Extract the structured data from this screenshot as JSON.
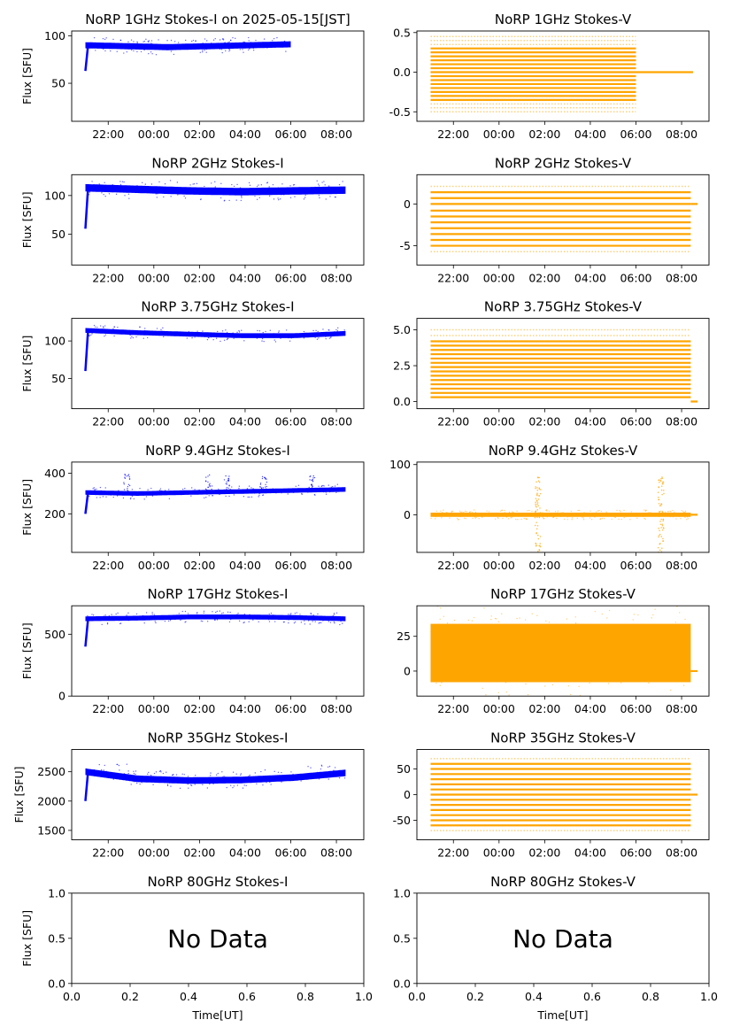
{
  "chart_data": [
    {
      "type": "scatter",
      "title": "NoRP 1GHz Stokes-I on 2025-05-15[JST]",
      "ylabel": "Flux [SFU]",
      "xlabel": "",
      "color": "#0000ff",
      "ylim": [
        10,
        105
      ],
      "yticks": [
        "50",
        "100"
      ],
      "yticks_v": [
        50,
        100
      ],
      "xlim": [
        20.4,
        33.2
      ],
      "xticks": [
        "22:00",
        "00:00",
        "02:00",
        "04:00",
        "06:00",
        "08:00"
      ],
      "xticks_v": [
        22,
        24,
        26,
        28,
        30,
        32
      ],
      "start": 21.0,
      "end": 30.0,
      "base": [
        90,
        89,
        88,
        89,
        90,
        91
      ],
      "rise_from": 63,
      "noise": 2,
      "spikes": 0
    },
    {
      "type": "scatter",
      "title": "NoRP 1GHz Stokes-V",
      "ylabel": "",
      "xlabel": "",
      "color": "#ffa500",
      "ylim": [
        -0.62,
        0.52
      ],
      "yticks": [
        "-0.5",
        "0.0",
        "0.5"
      ],
      "yticks_v": [
        -0.5,
        0,
        0.5
      ],
      "xlim": [
        20.4,
        33.2
      ],
      "xticks": [
        "22:00",
        "00:00",
        "02:00",
        "04:00",
        "06:00",
        "08:00"
      ],
      "xticks_v": [
        22,
        24,
        26,
        28,
        30,
        32
      ],
      "start": 21.0,
      "end": 30.0,
      "levels": [
        -0.35,
        -0.3,
        -0.25,
        -0.2,
        -0.15,
        -0.1,
        -0.05,
        0.0,
        0.05,
        0.1,
        0.15,
        0.2,
        0.25,
        0.3
      ],
      "sparse": [
        -0.5,
        -0.45,
        -0.4,
        0.35,
        0.4,
        0.45
      ],
      "flat_to": 32.5
    },
    {
      "type": "scatter",
      "title": "NoRP 2GHz Stokes-I",
      "ylabel": "Flux [SFU]",
      "xlabel": "",
      "color": "#0000ff",
      "ylim": [
        10,
        127
      ],
      "yticks": [
        "50",
        "100"
      ],
      "yticks_v": [
        50,
        100
      ],
      "xlim": [
        20.4,
        33.2
      ],
      "xticks": [
        "22:00",
        "00:00",
        "02:00",
        "04:00",
        "06:00",
        "08:00"
      ],
      "xticks_v": [
        22,
        24,
        26,
        28,
        30,
        32
      ],
      "start": 21.0,
      "end": 32.4,
      "base": [
        110,
        108,
        106,
        105,
        106,
        107
      ],
      "rise_from": 57,
      "noise": 3,
      "spikes": 0
    },
    {
      "type": "scatter",
      "title": "NoRP 2GHz Stokes-V",
      "ylabel": "",
      "xlabel": "",
      "color": "#ffa500",
      "ylim": [
        -7.3,
        3.5
      ],
      "yticks": [
        "-5",
        "0"
      ],
      "yticks_v": [
        -5,
        0
      ],
      "xlim": [
        20.4,
        33.2
      ],
      "xticks": [
        "22:00",
        "00:00",
        "02:00",
        "04:00",
        "06:00",
        "08:00"
      ],
      "xticks_v": [
        22,
        24,
        26,
        28,
        30,
        32
      ],
      "start": 21.0,
      "end": 32.4,
      "levels": [
        -5,
        -4.3,
        -3.6,
        -2.9,
        -2.2,
        -1.5,
        -0.8,
        0,
        0.7,
        1.4
      ],
      "sparse": [
        -5.7,
        2.1
      ],
      "flat_to": 32.7
    },
    {
      "type": "scatter",
      "title": "NoRP 3.75GHz Stokes-I",
      "ylabel": "Flux [SFU]",
      "xlabel": "",
      "color": "#0000ff",
      "ylim": [
        10,
        130
      ],
      "yticks": [
        "50",
        "100"
      ],
      "yticks_v": [
        50,
        100
      ],
      "xlim": [
        20.4,
        33.2
      ],
      "xticks": [
        "22:00",
        "00:00",
        "02:00",
        "04:00",
        "06:00",
        "08:00"
      ],
      "xticks_v": [
        22,
        24,
        26,
        28,
        30,
        32
      ],
      "start": 21.0,
      "end": 32.4,
      "base": [
        114,
        111,
        109,
        107,
        107,
        110
      ],
      "rise_from": 60,
      "noise": 2,
      "spikes": 0
    },
    {
      "type": "scatter",
      "title": "NoRP 3.75GHz Stokes-V",
      "ylabel": "",
      "xlabel": "",
      "color": "#ffa500",
      "ylim": [
        -0.5,
        5.8
      ],
      "yticks": [
        "0.0",
        "2.5",
        "5.0"
      ],
      "yticks_v": [
        0,
        2.5,
        5
      ],
      "xlim": [
        20.4,
        33.2
      ],
      "xticks": [
        "22:00",
        "00:00",
        "02:00",
        "04:00",
        "06:00",
        "08:00"
      ],
      "xticks_v": [
        22,
        24,
        26,
        28,
        30,
        32
      ],
      "start": 21.0,
      "end": 32.4,
      "levels": [
        0.3,
        0.6,
        0.9,
        1.2,
        1.5,
        1.8,
        2.1,
        2.4,
        2.7,
        3.0,
        3.3,
        3.6,
        3.9,
        4.2
      ],
      "sparse": [
        4.6,
        5.0
      ],
      "flat_to": 32.7
    },
    {
      "type": "scatter",
      "title": "NoRP 9.4GHz Stokes-I",
      "ylabel": "Flux [SFU]",
      "xlabel": "",
      "color": "#0000ff",
      "ylim": [
        10,
        455
      ],
      "yticks": [
        "200",
        "400"
      ],
      "yticks_v": [
        200,
        400
      ],
      "xlim": [
        20.4,
        33.2
      ],
      "xticks": [
        "22:00",
        "00:00",
        "02:00",
        "04:00",
        "06:00",
        "08:00"
      ],
      "xticks_v": [
        22,
        24,
        26,
        28,
        30,
        32
      ],
      "start": 21.0,
      "end": 32.4,
      "base": [
        305,
        300,
        305,
        310,
        315,
        320
      ],
      "rise_from": 200,
      "noise": 7,
      "spikes": 1
    },
    {
      "type": "scatter",
      "title": "NoRP 9.4GHz Stokes-V",
      "ylabel": "",
      "xlabel": "",
      "color": "#ffa500",
      "ylim": [
        -75,
        105
      ],
      "yticks": [
        "0",
        "100"
      ],
      "yticks_v": [
        0,
        100
      ],
      "xlim": [
        20.4,
        33.2
      ],
      "xticks": [
        "22:00",
        "00:00",
        "02:00",
        "04:00",
        "06:00",
        "08:00"
      ],
      "xticks_v": [
        22,
        24,
        26,
        28,
        30,
        32
      ],
      "start": 21.0,
      "end": 32.4,
      "band": 6,
      "bursts": [
        25.7,
        31.1
      ],
      "flat_to": 32.7
    },
    {
      "type": "scatter",
      "title": "NoRP 17GHz Stokes-I",
      "ylabel": "Flux [SFU]",
      "xlabel": "",
      "color": "#0000ff",
      "ylim": [
        0,
        730
      ],
      "yticks": [
        "0",
        "500"
      ],
      "yticks_v": [
        0,
        500
      ],
      "xlim": [
        20.4,
        33.2
      ],
      "xticks": [
        "22:00",
        "00:00",
        "02:00",
        "04:00",
        "06:00",
        "08:00"
      ],
      "xticks_v": [
        22,
        24,
        26,
        28,
        30,
        32
      ],
      "start": 21.0,
      "end": 32.4,
      "base": [
        625,
        630,
        640,
        640,
        635,
        625
      ],
      "rise_from": 400,
      "noise": 12,
      "spikes": 0
    },
    {
      "type": "scatter",
      "title": "NoRP 17GHz Stokes-V",
      "ylabel": "",
      "xlabel": "",
      "color": "#ffa500",
      "ylim": [
        -18,
        47
      ],
      "yticks": [
        "0",
        "25"
      ],
      "yticks_v": [
        0,
        25
      ],
      "xlim": [
        20.4,
        33.2
      ],
      "xticks": [
        "22:00",
        "00:00",
        "02:00",
        "04:00",
        "06:00",
        "08:00"
      ],
      "xticks_v": [
        22,
        24,
        26,
        28,
        30,
        32
      ],
      "start": 21.0,
      "end": 32.4,
      "band": 30,
      "center": 13,
      "flat_to": 32.7
    },
    {
      "type": "scatter",
      "title": "NoRP 35GHz Stokes-I",
      "ylabel": "Flux [SFU]",
      "xlabel": "",
      "color": "#0000ff",
      "ylim": [
        1340,
        2880
      ],
      "yticks": [
        "1500",
        "2000",
        "2500"
      ],
      "yticks_v": [
        1500,
        2000,
        2500
      ],
      "xlim": [
        20.4,
        33.2
      ],
      "xticks": [
        "22:00",
        "00:00",
        "02:00",
        "04:00",
        "06:00",
        "08:00"
      ],
      "xticks_v": [
        22,
        24,
        26,
        28,
        30,
        32
      ],
      "start": 21.0,
      "end": 32.4,
      "base": [
        2500,
        2380,
        2350,
        2360,
        2400,
        2480
      ],
      "rise_from": 2000,
      "noise": 35,
      "spikes": 0
    },
    {
      "type": "scatter",
      "title": "NoRP 35GHz Stokes-V",
      "ylabel": "",
      "xlabel": "",
      "color": "#ffa500",
      "ylim": [
        -88,
        88
      ],
      "yticks": [
        "-50",
        "0",
        "50"
      ],
      "yticks_v": [
        -50,
        0,
        50
      ],
      "xlim": [
        20.4,
        33.2
      ],
      "xticks": [
        "22:00",
        "00:00",
        "02:00",
        "04:00",
        "06:00",
        "08:00"
      ],
      "xticks_v": [
        22,
        24,
        26,
        28,
        30,
        32
      ],
      "start": 21.0,
      "end": 32.4,
      "levels": [
        -60,
        -50,
        -40,
        -30,
        -20,
        -10,
        0,
        10,
        20,
        30,
        40,
        50,
        60
      ],
      "sparse": [
        -70,
        70
      ],
      "flat_to": 32.7
    },
    {
      "type": "scatter",
      "title": "NoRP 80GHz Stokes-I",
      "ylabel": "Flux [SFU]",
      "xlabel": "Time[UT]",
      "nodata": "No Data",
      "ylim": [
        0,
        1
      ],
      "xlim": [
        0,
        1
      ],
      "yticks": [
        "0.0",
        "0.5",
        "1.0"
      ],
      "yticks_v": [
        0,
        0.5,
        1
      ],
      "xticks": [
        "0.0",
        "0.2",
        "0.4",
        "0.6",
        "0.8",
        "1.0"
      ],
      "xticks_v": [
        0,
        0.2,
        0.4,
        0.6,
        0.8,
        1
      ]
    },
    {
      "type": "scatter",
      "title": "NoRP 80GHz Stokes-V",
      "ylabel": "",
      "xlabel": "Time[UT]",
      "nodata": "No Data",
      "ylim": [
        0,
        1
      ],
      "xlim": [
        0,
        1
      ],
      "yticks": [
        "0.0",
        "0.5",
        "1.0"
      ],
      "yticks_v": [
        0,
        0.5,
        1
      ],
      "xticks": [
        "0.0",
        "0.2",
        "0.4",
        "0.6",
        "0.8",
        "1.0"
      ],
      "xticks_v": [
        0,
        0.2,
        0.4,
        0.6,
        0.8,
        1
      ]
    }
  ]
}
